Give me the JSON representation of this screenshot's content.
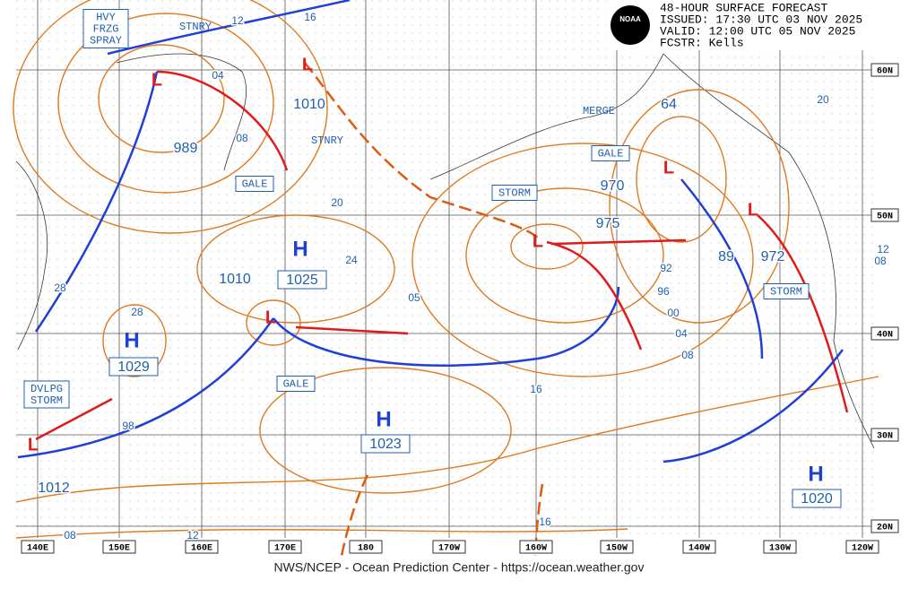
{
  "header": {
    "title": "48-HOUR SURFACE FORECAST",
    "issued": "ISSUED: 17:30 UTC 03 NOV 2025",
    "valid": "VALID:  12:00 UTC 05 NOV 2025",
    "forecaster": "FCSTR:  Kells",
    "logo": "NOAA"
  },
  "lat_labels": [
    "60N",
    "50N",
    "40N",
    "30N",
    "20N"
  ],
  "lon_labels": [
    "140E",
    "150E",
    "160E",
    "170E",
    "180",
    "170W",
    "160W",
    "150W",
    "140W",
    "130W",
    "120W"
  ],
  "highs": [
    {
      "symbol": "H",
      "pressure": "1025"
    },
    {
      "symbol": "H",
      "pressure": "1029"
    },
    {
      "symbol": "H",
      "pressure": "1023"
    },
    {
      "symbol": "H",
      "pressure": "1020"
    }
  ],
  "lows": [
    {
      "symbol": "L",
      "pressure": "989"
    },
    {
      "symbol": "L",
      "pressure": "1010"
    },
    {
      "symbol": "L",
      "pressure": "975"
    },
    {
      "symbol": "L",
      "pressure": "970"
    },
    {
      "symbol": "L",
      "pressure": "972"
    },
    {
      "symbol": "L",
      "pressure": "1010"
    },
    {
      "symbol": "L",
      "pressure": "1012"
    }
  ],
  "warnings": [
    {
      "lines": [
        "HVY",
        "FRZG",
        "SPRAY"
      ]
    },
    {
      "lines": [
        "GALE"
      ]
    },
    {
      "lines": [
        "GALE"
      ]
    },
    {
      "lines": [
        "STORM"
      ]
    },
    {
      "lines": [
        "STORM"
      ]
    },
    {
      "lines": [
        "GALE"
      ]
    },
    {
      "lines": [
        "DVLPG",
        "STORM"
      ]
    }
  ],
  "notes": [
    "STNRY",
    "STNRY",
    "MERGE"
  ],
  "isobar_labels": [
    "12",
    "16",
    "04",
    "08",
    "20",
    "24",
    "28",
    "28",
    "05",
    "98",
    "92",
    "96",
    "00",
    "04",
    "08",
    "16",
    "20",
    "12",
    "08",
    "16",
    "08",
    "12",
    "64",
    "89"
  ],
  "footer": "NWS/NCEP - Ocean Prediction Center - https://ocean.weather.gov"
}
